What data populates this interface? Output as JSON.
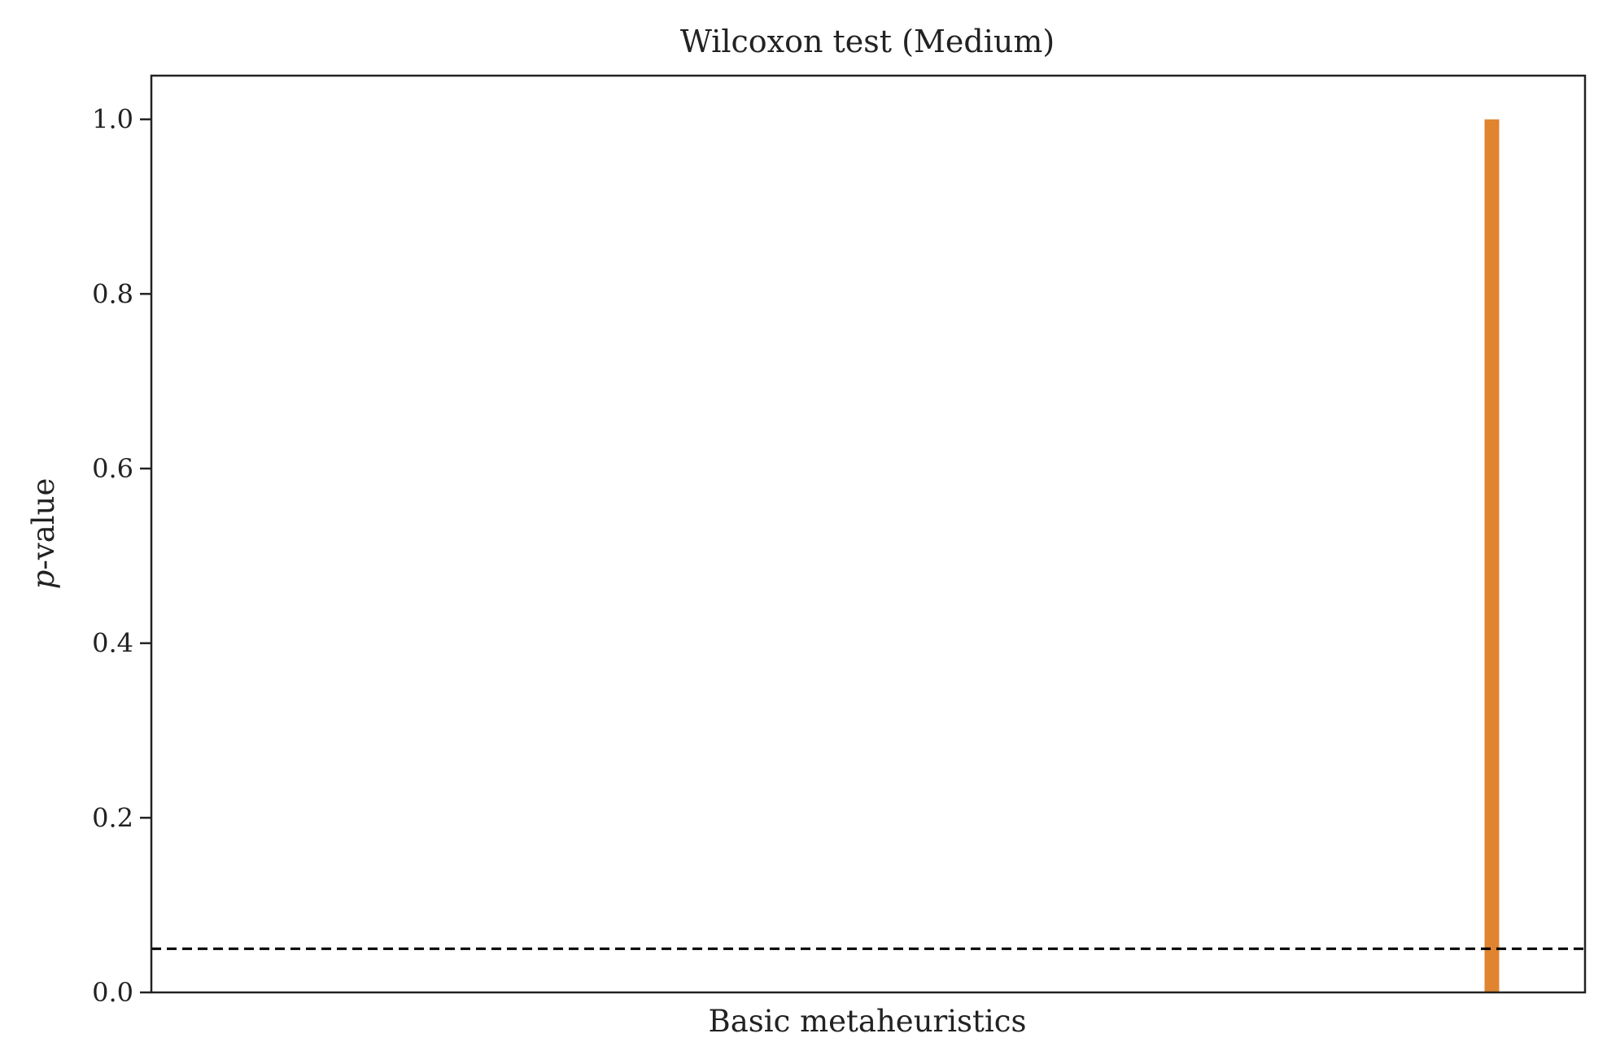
{
  "chart_data": {
    "type": "bar",
    "title": "Wilcoxon test (Medium)",
    "xlabel": "Basic metaheuristics",
    "ylabel": {
      "italic": "p",
      "rest": "-value"
    },
    "ylim": [
      0.0,
      1.05
    ],
    "xlim": [
      0.0,
      1.0
    ],
    "yticks": [
      0.0,
      0.2,
      0.4,
      0.6,
      0.8,
      1.0
    ],
    "ytick_labels": [
      "0.0",
      "0.2",
      "0.4",
      "0.6",
      "0.8",
      "1.0"
    ],
    "grid": false,
    "bars": [
      {
        "x": 0.935,
        "value": 1.0,
        "color": "#E08430"
      }
    ],
    "threshold": {
      "value": 0.05,
      "style": "dashed",
      "color": "#000000"
    }
  }
}
